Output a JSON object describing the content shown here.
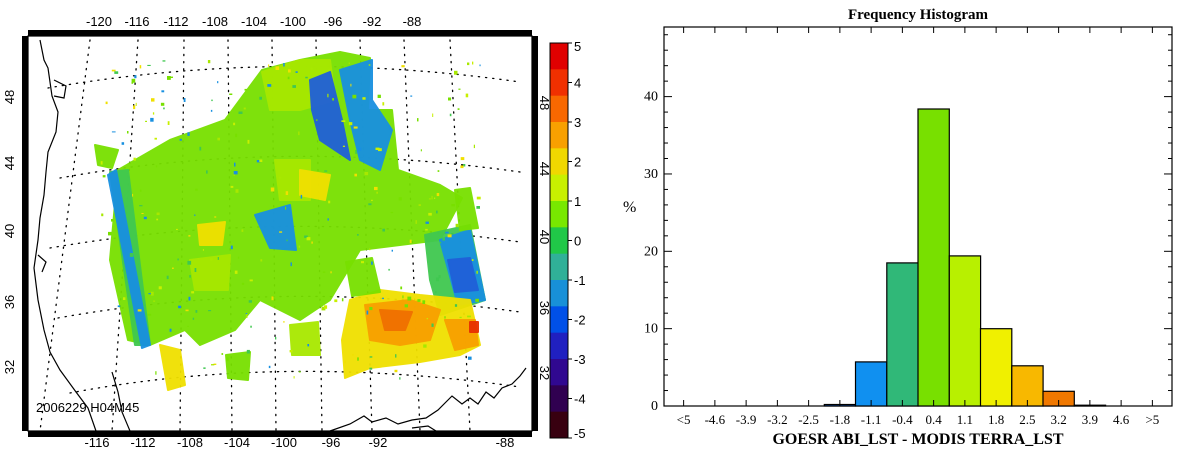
{
  "chart_data": [
    {
      "type": "heatmap",
      "stamp": "2006229 H04M45",
      "top_lon_labels": [
        "-120",
        "-116",
        "-112",
        "-108",
        "-104",
        "-100",
        "-96",
        "-92",
        "-88"
      ],
      "bottom_lon_labels": [
        "-116",
        "-112",
        "-108",
        "-104",
        "-100",
        "-96",
        "-92",
        "-88"
      ],
      "left_lat_labels": [
        "48",
        "44",
        "40",
        "36",
        "32"
      ],
      "right_lat_labels": [
        "48",
        "44",
        "40",
        "36",
        "32"
      ],
      "colorbar": {
        "labels": [
          "5",
          "4",
          "3",
          "2",
          "1",
          "0",
          "-1",
          "-2",
          "-3",
          "-4",
          "-5"
        ],
        "colors": [
          "#e00000",
          "#f03000",
          "#f86800",
          "#f8a000",
          "#f0d800",
          "#c8f000",
          "#78e800",
          "#20c848",
          "#30b098",
          "#1890d8",
          "#0050e8",
          "#2020c0",
          "#300890",
          "#300050",
          "#380010"
        ]
      },
      "grid": true
    },
    {
      "type": "bar",
      "title": "Frequency Histogram",
      "xlabel": "GOESR ABI_LST - MODIS TERRA_LST",
      "ylabel": "%",
      "categories": [
        "<5",
        "-4.6",
        "-3.9",
        "-3.2",
        "-2.5",
        "-1.8",
        "-1.1",
        "-0.4",
        "0.4",
        "1.1",
        "1.8",
        "2.5",
        "3.2",
        "3.9",
        "4.6",
        ">5"
      ],
      "values": [
        0,
        0,
        0,
        0,
        0,
        0.2,
        5.7,
        18.5,
        38.4,
        19.4,
        10.0,
        5.2,
        1.9,
        0.1,
        0,
        0
      ],
      "colors": [
        "#2a0a3a",
        "#2a0a3a",
        "#300890",
        "#2020c0",
        "#0040e0",
        "#1060d8",
        "#1090f0",
        "#30b878",
        "#78e000",
        "#b8f000",
        "#f0f000",
        "#f8b800",
        "#f07800",
        "#e83000",
        "#d80000",
        "#d80000"
      ],
      "ylim": [
        0,
        49
      ],
      "yticks": [
        "0",
        "10",
        "20",
        "30",
        "40"
      ]
    }
  ]
}
